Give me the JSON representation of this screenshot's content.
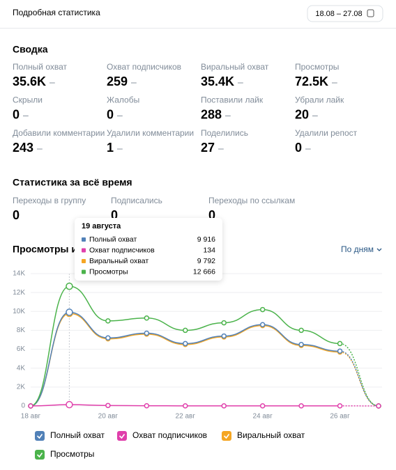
{
  "header": {
    "title": "Подробная статистика",
    "date_range": "18.08 – 27.08"
  },
  "summary": {
    "title": "Сводка",
    "items": [
      {
        "label": "Полный охват",
        "value": "35.6K",
        "change": "–"
      },
      {
        "label": "Охват подписчиков",
        "value": 259,
        "change": "–"
      },
      {
        "label": "Виральный охват",
        "value": "35.4K",
        "change": "–"
      },
      {
        "label": "Просмотры",
        "value": "72.5K",
        "change": "–"
      },
      {
        "label": "Скрыли",
        "value": 0,
        "change": "–"
      },
      {
        "label": "Жалобы",
        "value": 0,
        "change": "–"
      },
      {
        "label": "Поставили лайк",
        "value": 288,
        "change": "–"
      },
      {
        "label": "Убрали лайк",
        "value": 20,
        "change": "–"
      },
      {
        "label": "Добавили комментарии",
        "value": 243,
        "change": "–"
      },
      {
        "label": "Удалили комментарии",
        "value": 1,
        "change": "–"
      },
      {
        "label": "Поделились",
        "value": 27,
        "change": "–"
      },
      {
        "label": "Удалили репост",
        "value": 0,
        "change": "–"
      }
    ]
  },
  "all_time": {
    "title": "Статистика за всё время",
    "items": [
      {
        "label": "Переходы в группу",
        "value": 0
      },
      {
        "label": "Подписались",
        "value": 0
      },
      {
        "label": "Переходы по ссылкам",
        "value": 0
      }
    ]
  },
  "chart_data": {
    "type": "line",
    "title": "Просмотры и охват",
    "period": "По дням",
    "categories": [
      "18 авг",
      null,
      "20 авг",
      null,
      "22 авг",
      null,
      "24 авг",
      null,
      "26 авг",
      null
    ],
    "series": [
      {
        "name": "Полный охват",
        "color": "#5181b8",
        "values": [
          0,
          9916,
          7200,
          7700,
          6600,
          7400,
          8600,
          6500,
          5800,
          0
        ]
      },
      {
        "name": "Охват подписчиков",
        "color": "#e03fab",
        "values": [
          0,
          134,
          50,
          20,
          10,
          10,
          10,
          10,
          10,
          0
        ]
      },
      {
        "name": "Виральный охват",
        "color": "#f5a623",
        "values": [
          0,
          9792,
          7100,
          7600,
          6500,
          7300,
          8500,
          6400,
          5700,
          0
        ]
      },
      {
        "name": "Просмотры",
        "color": "#4bb34b",
        "values": [
          0,
          12666,
          9000,
          9300,
          8000,
          8800,
          10200,
          8000,
          6600,
          0
        ]
      }
    ],
    "ylim": [
      0,
      14000
    ],
    "yticks": [
      0,
      {
        "value": 2000,
        "label": "2K"
      },
      {
        "value": 4000,
        "label": "4K"
      },
      {
        "value": 6000,
        "label": "6K"
      },
      {
        "value": 8000,
        "label": "8K"
      },
      {
        "value": 10000,
        "label": "10K"
      },
      {
        "value": 12000,
        "label": "12K"
      },
      {
        "value": 14000,
        "label": "14K"
      }
    ],
    "grid": true
  },
  "tooltip": {
    "title": "19 августа",
    "rows": [
      {
        "name": "Полный охват",
        "value": "9 916"
      },
      {
        "name": "Охват подписчиков",
        "value": "134"
      },
      {
        "name": "Виральный охват",
        "value": "9 792"
      },
      {
        "name": "Просмотры",
        "value": "12 666"
      }
    ]
  }
}
